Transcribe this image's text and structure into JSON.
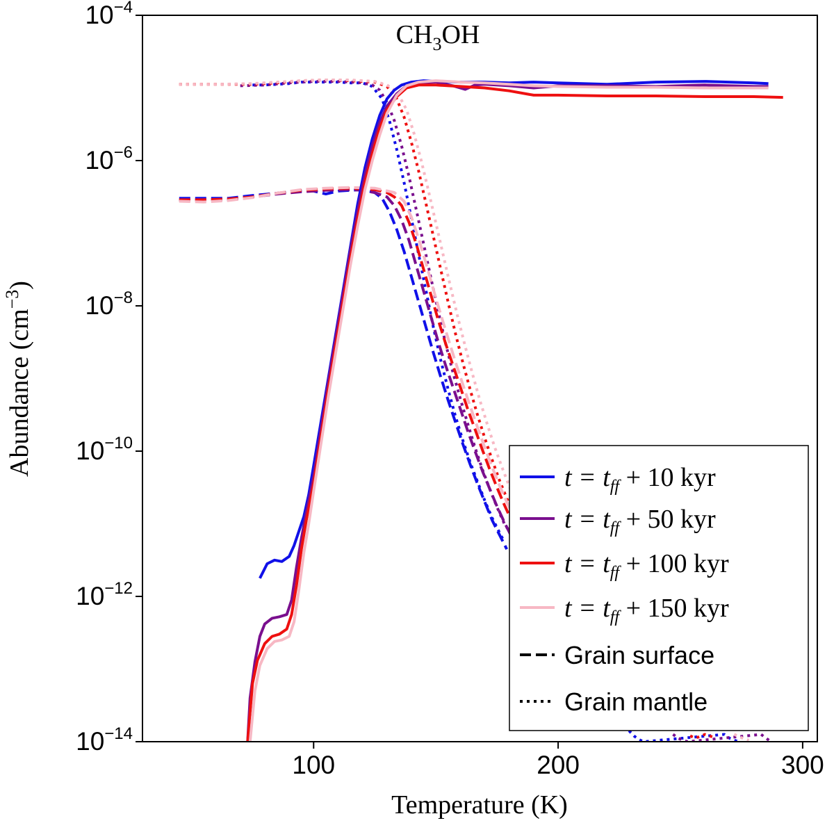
{
  "chart_data": {
    "type": "line",
    "title": "CH3OH",
    "title_parts": {
      "main": "CH",
      "sub": "3",
      "tail": "OH"
    },
    "xlabel": "Temperature (K)",
    "ylabel": "Abundance (cm−3)",
    "ylabel_parts": {
      "main": "Abundance (cm",
      "sup": "−3",
      "tail": ")"
    },
    "xlim": [
      30,
      306
    ],
    "ylim_log10": [
      -14,
      -4
    ],
    "x_ticks": [
      {
        "value": 100,
        "label": "100"
      },
      {
        "value": 200,
        "label": "200"
      },
      {
        "value": 300,
        "label": "300"
      }
    ],
    "y_ticks": [
      {
        "value": -4,
        "base": "10",
        "exp": "−4"
      },
      {
        "value": -6,
        "base": "10",
        "exp": "−6"
      },
      {
        "value": -8,
        "base": "10",
        "exp": "−8"
      },
      {
        "value": -10,
        "base": "10",
        "exp": "−10"
      },
      {
        "value": -12,
        "base": "10",
        "exp": "−12"
      },
      {
        "value": -14,
        "base": "10",
        "exp": "−14"
      }
    ],
    "colors": {
      "10": "#1010e8",
      "50": "#7a0f8e",
      "100": "#ee1010",
      "150": "#f7b8c4"
    },
    "series": [
      {
        "name": "t = t_ff + 10 kyr",
        "time": "10",
        "phase": "gas",
        "x": [
          78,
          81,
          84,
          87,
          90,
          92,
          94,
          96,
          98,
          100,
          103,
          106,
          109,
          112,
          115,
          118,
          121,
          124,
          127,
          130,
          133,
          136,
          140,
          145,
          150,
          160,
          170,
          180,
          190,
          200,
          220,
          240,
          260,
          280,
          286
        ],
        "y": [
          -11.75,
          -11.55,
          -11.5,
          -11.52,
          -11.45,
          -11.3,
          -11.1,
          -10.9,
          -10.6,
          -10.2,
          -9.6,
          -9.0,
          -8.4,
          -7.8,
          -7.2,
          -6.6,
          -6.1,
          -5.7,
          -5.38,
          -5.15,
          -5.03,
          -4.96,
          -4.92,
          -4.9,
          -4.91,
          -4.92,
          -4.92,
          -4.93,
          -4.92,
          -4.93,
          -4.95,
          -4.92,
          -4.91,
          -4.93,
          -4.94
        ]
      },
      {
        "name": "t = t_ff + 50 kyr",
        "time": "50",
        "phase": "gas",
        "x": [
          73,
          74,
          76,
          78,
          80,
          83,
          86,
          89,
          91,
          93,
          95,
          97,
          100,
          103,
          106,
          109,
          112,
          115,
          118,
          121,
          124,
          127,
          130,
          134,
          138,
          143,
          150,
          157,
          162,
          166,
          170,
          180,
          190,
          200,
          220,
          240,
          260,
          280,
          286
        ],
        "y": [
          -14,
          -13.4,
          -12.9,
          -12.55,
          -12.38,
          -12.3,
          -12.28,
          -12.25,
          -12.05,
          -11.6,
          -11.2,
          -10.85,
          -10.35,
          -9.7,
          -9.05,
          -8.45,
          -7.85,
          -7.25,
          -6.7,
          -6.2,
          -5.8,
          -5.48,
          -5.25,
          -5.08,
          -4.97,
          -4.93,
          -4.92,
          -4.97,
          -5.02,
          -4.96,
          -4.95,
          -4.97,
          -5.0,
          -4.97,
          -4.97,
          -4.98,
          -4.96,
          -4.98,
          -4.98
        ]
      },
      {
        "name": "t = t_ff + 100 kyr",
        "time": "100",
        "phase": "gas",
        "x": [
          73,
          75,
          77,
          80,
          83,
          86,
          89,
          91,
          93,
          95,
          97,
          100,
          103,
          106,
          109,
          112,
          115,
          118,
          121,
          124,
          127,
          130,
          134,
          138,
          143,
          150,
          160,
          170,
          180,
          190,
          200,
          220,
          240,
          260,
          280,
          292
        ],
        "y": [
          -14,
          -13.2,
          -12.88,
          -12.65,
          -12.55,
          -12.52,
          -12.45,
          -12.25,
          -11.85,
          -11.35,
          -10.95,
          -10.45,
          -9.8,
          -9.15,
          -8.55,
          -7.95,
          -7.35,
          -6.8,
          -6.3,
          -5.9,
          -5.55,
          -5.3,
          -5.12,
          -5.0,
          -4.96,
          -4.96,
          -4.98,
          -5.0,
          -5.04,
          -5.1,
          -5.1,
          -5.11,
          -5.11,
          -5.12,
          -5.12,
          -5.13
        ]
      },
      {
        "name": "t = t_ff + 150 kyr",
        "time": "150",
        "phase": "gas",
        "x": [
          74,
          76,
          78,
          81,
          84,
          87,
          90,
          92,
          94,
          96,
          98,
          100,
          103,
          106,
          109,
          112,
          115,
          118,
          121,
          124,
          127,
          130,
          134,
          138,
          143,
          150,
          160,
          170,
          180,
          190,
          200,
          220,
          240,
          260,
          280,
          286
        ],
        "y": [
          -14,
          -13.3,
          -12.95,
          -12.72,
          -12.62,
          -12.6,
          -12.55,
          -12.35,
          -11.9,
          -11.4,
          -11.0,
          -10.55,
          -9.9,
          -9.25,
          -8.65,
          -8.05,
          -7.45,
          -6.9,
          -6.4,
          -6.0,
          -5.65,
          -5.35,
          -5.1,
          -4.97,
          -4.92,
          -4.9,
          -4.92,
          -4.93,
          -4.95,
          -4.97,
          -4.98,
          -4.99,
          -4.99,
          -5.0,
          -5.0,
          -5.0
        ]
      },
      {
        "name": "Grain surface (10 kyr)",
        "time": "10",
        "phase": "surface",
        "x": [
          45,
          55,
          65,
          75,
          85,
          95,
          100,
          105,
          110,
          115,
          120,
          125,
          128,
          131,
          134,
          137,
          140,
          143,
          146,
          149,
          152,
          155,
          158,
          161,
          164,
          167,
          170,
          173,
          176,
          179
        ],
        "y": [
          -6.52,
          -6.52,
          -6.52,
          -6.48,
          -6.45,
          -6.42,
          -6.42,
          -6.46,
          -6.42,
          -6.41,
          -6.4,
          -6.44,
          -6.52,
          -6.7,
          -6.95,
          -7.25,
          -7.6,
          -7.95,
          -8.3,
          -8.65,
          -8.98,
          -9.3,
          -9.6,
          -9.9,
          -10.18,
          -10.45,
          -10.7,
          -10.95,
          -11.15,
          -11.35
        ]
      },
      {
        "name": "Grain surface (50 kyr)",
        "time": "50",
        "phase": "surface",
        "x": [
          45,
          55,
          65,
          75,
          85,
          95,
          105,
          115,
          120,
          125,
          130,
          133,
          136,
          139,
          142,
          145,
          148,
          151,
          154,
          157,
          160,
          163,
          166,
          169,
          172,
          175,
          178,
          181,
          183
        ],
        "y": [
          -6.55,
          -6.54,
          -6.54,
          -6.5,
          -6.46,
          -6.43,
          -6.41,
          -6.4,
          -6.41,
          -6.44,
          -6.5,
          -6.62,
          -6.82,
          -7.1,
          -7.45,
          -7.8,
          -8.15,
          -8.5,
          -8.82,
          -9.12,
          -9.42,
          -9.72,
          -10.0,
          -10.27,
          -10.52,
          -10.76,
          -10.98,
          -11.18,
          -11.3
        ]
      },
      {
        "name": "Grain surface (100 kyr)",
        "time": "100",
        "phase": "surface",
        "x": [
          45,
          55,
          65,
          75,
          85,
          95,
          105,
          115,
          125,
          130,
          133,
          136,
          139,
          142,
          145,
          148,
          151,
          154,
          157,
          160,
          163,
          166,
          169,
          172,
          175,
          178,
          181,
          184,
          187
        ],
        "y": [
          -6.54,
          -6.54,
          -6.53,
          -6.5,
          -6.45,
          -6.41,
          -6.39,
          -6.38,
          -6.4,
          -6.44,
          -6.5,
          -6.62,
          -6.85,
          -7.15,
          -7.5,
          -7.85,
          -8.2,
          -8.52,
          -8.82,
          -9.12,
          -9.42,
          -9.7,
          -9.98,
          -10.25,
          -10.5,
          -10.74,
          -10.96,
          -11.16,
          -11.3
        ]
      },
      {
        "name": "Grain surface (150 kyr)",
        "time": "150",
        "phase": "surface",
        "x": [
          45,
          55,
          65,
          75,
          85,
          95,
          105,
          115,
          125,
          133,
          137,
          140,
          143,
          146,
          149,
          152,
          155,
          158,
          161,
          164,
          167,
          170,
          173,
          176,
          179,
          182,
          185,
          188
        ],
        "y": [
          -6.56,
          -6.57,
          -6.55,
          -6.51,
          -6.45,
          -6.4,
          -6.38,
          -6.37,
          -6.38,
          -6.44,
          -6.56,
          -6.78,
          -7.08,
          -7.42,
          -7.78,
          -8.12,
          -8.45,
          -8.77,
          -9.08,
          -9.38,
          -9.67,
          -9.95,
          -10.22,
          -10.47,
          -10.7,
          -10.92,
          -11.12,
          -11.25
        ]
      },
      {
        "name": "Grain mantle (10 kyr)",
        "time": "10",
        "phase": "mantle",
        "x": [
          75,
          80,
          85,
          90,
          95,
          100,
          105,
          110,
          115,
          120,
          124,
          128,
          131,
          134,
          137,
          140,
          143,
          146,
          149,
          152,
          155,
          158,
          161,
          164,
          167,
          170,
          173,
          176,
          178
        ],
        "y": [
          -4.96,
          -4.96,
          -4.95,
          -4.94,
          -4.92,
          -4.92,
          -4.92,
          -4.92,
          -4.93,
          -4.93,
          -4.98,
          -5.15,
          -5.45,
          -5.85,
          -6.3,
          -6.8,
          -7.3,
          -7.8,
          -8.3,
          -8.75,
          -9.15,
          -9.52,
          -9.85,
          -10.15,
          -10.42,
          -10.68,
          -10.92,
          -11.12,
          -11.25
        ]
      },
      {
        "name": "Grain mantle (50 kyr)",
        "time": "50",
        "phase": "mantle",
        "x": [
          70,
          80,
          90,
          100,
          110,
          115,
          120,
          124,
          127,
          130,
          133,
          136,
          139,
          142,
          145,
          148,
          151,
          154,
          157,
          160,
          163,
          166,
          169,
          172,
          175,
          178,
          180
        ],
        "y": [
          -4.97,
          -4.96,
          -4.93,
          -4.91,
          -4.91,
          -4.92,
          -4.93,
          -4.96,
          -5.03,
          -5.2,
          -5.45,
          -5.8,
          -6.22,
          -6.68,
          -7.15,
          -7.62,
          -8.08,
          -8.52,
          -8.92,
          -9.28,
          -9.62,
          -9.95,
          -10.25,
          -10.52,
          -10.77,
          -11.0,
          -11.1
        ]
      },
      {
        "name": "Grain mantle (100 kyr)",
        "time": "100",
        "phase": "mantle",
        "x": [
          45,
          60,
          75,
          85,
          95,
          105,
          115,
          125,
          130,
          134,
          137,
          140,
          143,
          146,
          149,
          152,
          155,
          158,
          161,
          164,
          167,
          170,
          173,
          176,
          179,
          182,
          184
        ],
        "y": [
          -4.95,
          -4.95,
          -4.95,
          -4.93,
          -4.9,
          -4.89,
          -4.9,
          -4.92,
          -4.98,
          -5.15,
          -5.4,
          -5.75,
          -6.15,
          -6.6,
          -7.05,
          -7.5,
          -7.95,
          -8.38,
          -8.78,
          -9.15,
          -9.5,
          -9.82,
          -10.12,
          -10.4,
          -10.65,
          -10.88,
          -11.0
        ]
      },
      {
        "name": "Grain mantle (150 kyr)",
        "time": "150",
        "phase": "mantle",
        "x": [
          45,
          60,
          75,
          85,
          95,
          105,
          115,
          125,
          130,
          134,
          138,
          141,
          144,
          147,
          150,
          153,
          156,
          159,
          162,
          165,
          168,
          171,
          174,
          177,
          180,
          183,
          186,
          188
        ],
        "y": [
          -4.95,
          -4.95,
          -4.94,
          -4.92,
          -4.9,
          -4.89,
          -4.89,
          -4.91,
          -4.96,
          -5.05,
          -5.3,
          -5.62,
          -6.0,
          -6.42,
          -6.86,
          -7.3,
          -7.74,
          -8.16,
          -8.56,
          -8.94,
          -9.3,
          -9.63,
          -9.94,
          -10.22,
          -10.48,
          -10.72,
          -10.92,
          -11.02
        ]
      },
      {
        "name": "Mantle tail (10 kyr)",
        "time": "10",
        "phase": "mantle",
        "x": [
          229,
          231,
          233,
          235,
          268,
          270,
          272,
          274
        ],
        "y": [
          -13.85,
          -13.92,
          -13.97,
          -14.0,
          -13.9,
          -13.95,
          -13.98,
          -14.0
        ]
      },
      {
        "name": "Mantle tail (50 kyr)",
        "time": "50",
        "phase": "mantle",
        "x": [
          247,
          249,
          251,
          253,
          283,
          285,
          287
        ],
        "y": [
          -13.9,
          -13.95,
          -13.98,
          -14.0,
          -13.9,
          -13.95,
          -14.0
        ]
      },
      {
        "name": "Mantle tail (100 kyr)",
        "time": "100",
        "phase": "mantle",
        "x": [
          254,
          256,
          258,
          260,
          262,
          264
        ],
        "y": [
          -13.92,
          -13.95,
          -13.93,
          -13.9,
          -13.92,
          -13.95
        ]
      },
      {
        "name": "Mantle tail (150 kyr)",
        "time": "150",
        "phase": "mantle",
        "x": [
          272,
          274,
          276,
          278
        ],
        "y": [
          -13.9,
          -13.93,
          -13.96,
          -13.98
        ]
      }
    ],
    "legend": {
      "position": "lower-right",
      "entries": [
        {
          "style": "solid",
          "color_key": "10",
          "t": "t",
          "eq": "=",
          "tff_base": "t",
          "tff_sub": "ff",
          "plus": "+",
          "value": "10",
          "unit": "kyr"
        },
        {
          "style": "solid",
          "color_key": "50",
          "t": "t",
          "eq": "=",
          "tff_base": "t",
          "tff_sub": "ff",
          "plus": "+",
          "value": "50",
          "unit": "kyr"
        },
        {
          "style": "solid",
          "color_key": "100",
          "t": "t",
          "eq": "=",
          "tff_base": "t",
          "tff_sub": "ff",
          "plus": "+",
          "value": "100",
          "unit": "kyr"
        },
        {
          "style": "solid",
          "color_key": "150",
          "t": "t",
          "eq": "=",
          "tff_base": "t",
          "tff_sub": "ff",
          "plus": "+",
          "value": "150",
          "unit": "kyr"
        },
        {
          "style": "dashed",
          "color": "#000000",
          "label": "Grain surface"
        },
        {
          "style": "dotted",
          "color": "#000000",
          "label": "Grain mantle"
        }
      ]
    }
  }
}
